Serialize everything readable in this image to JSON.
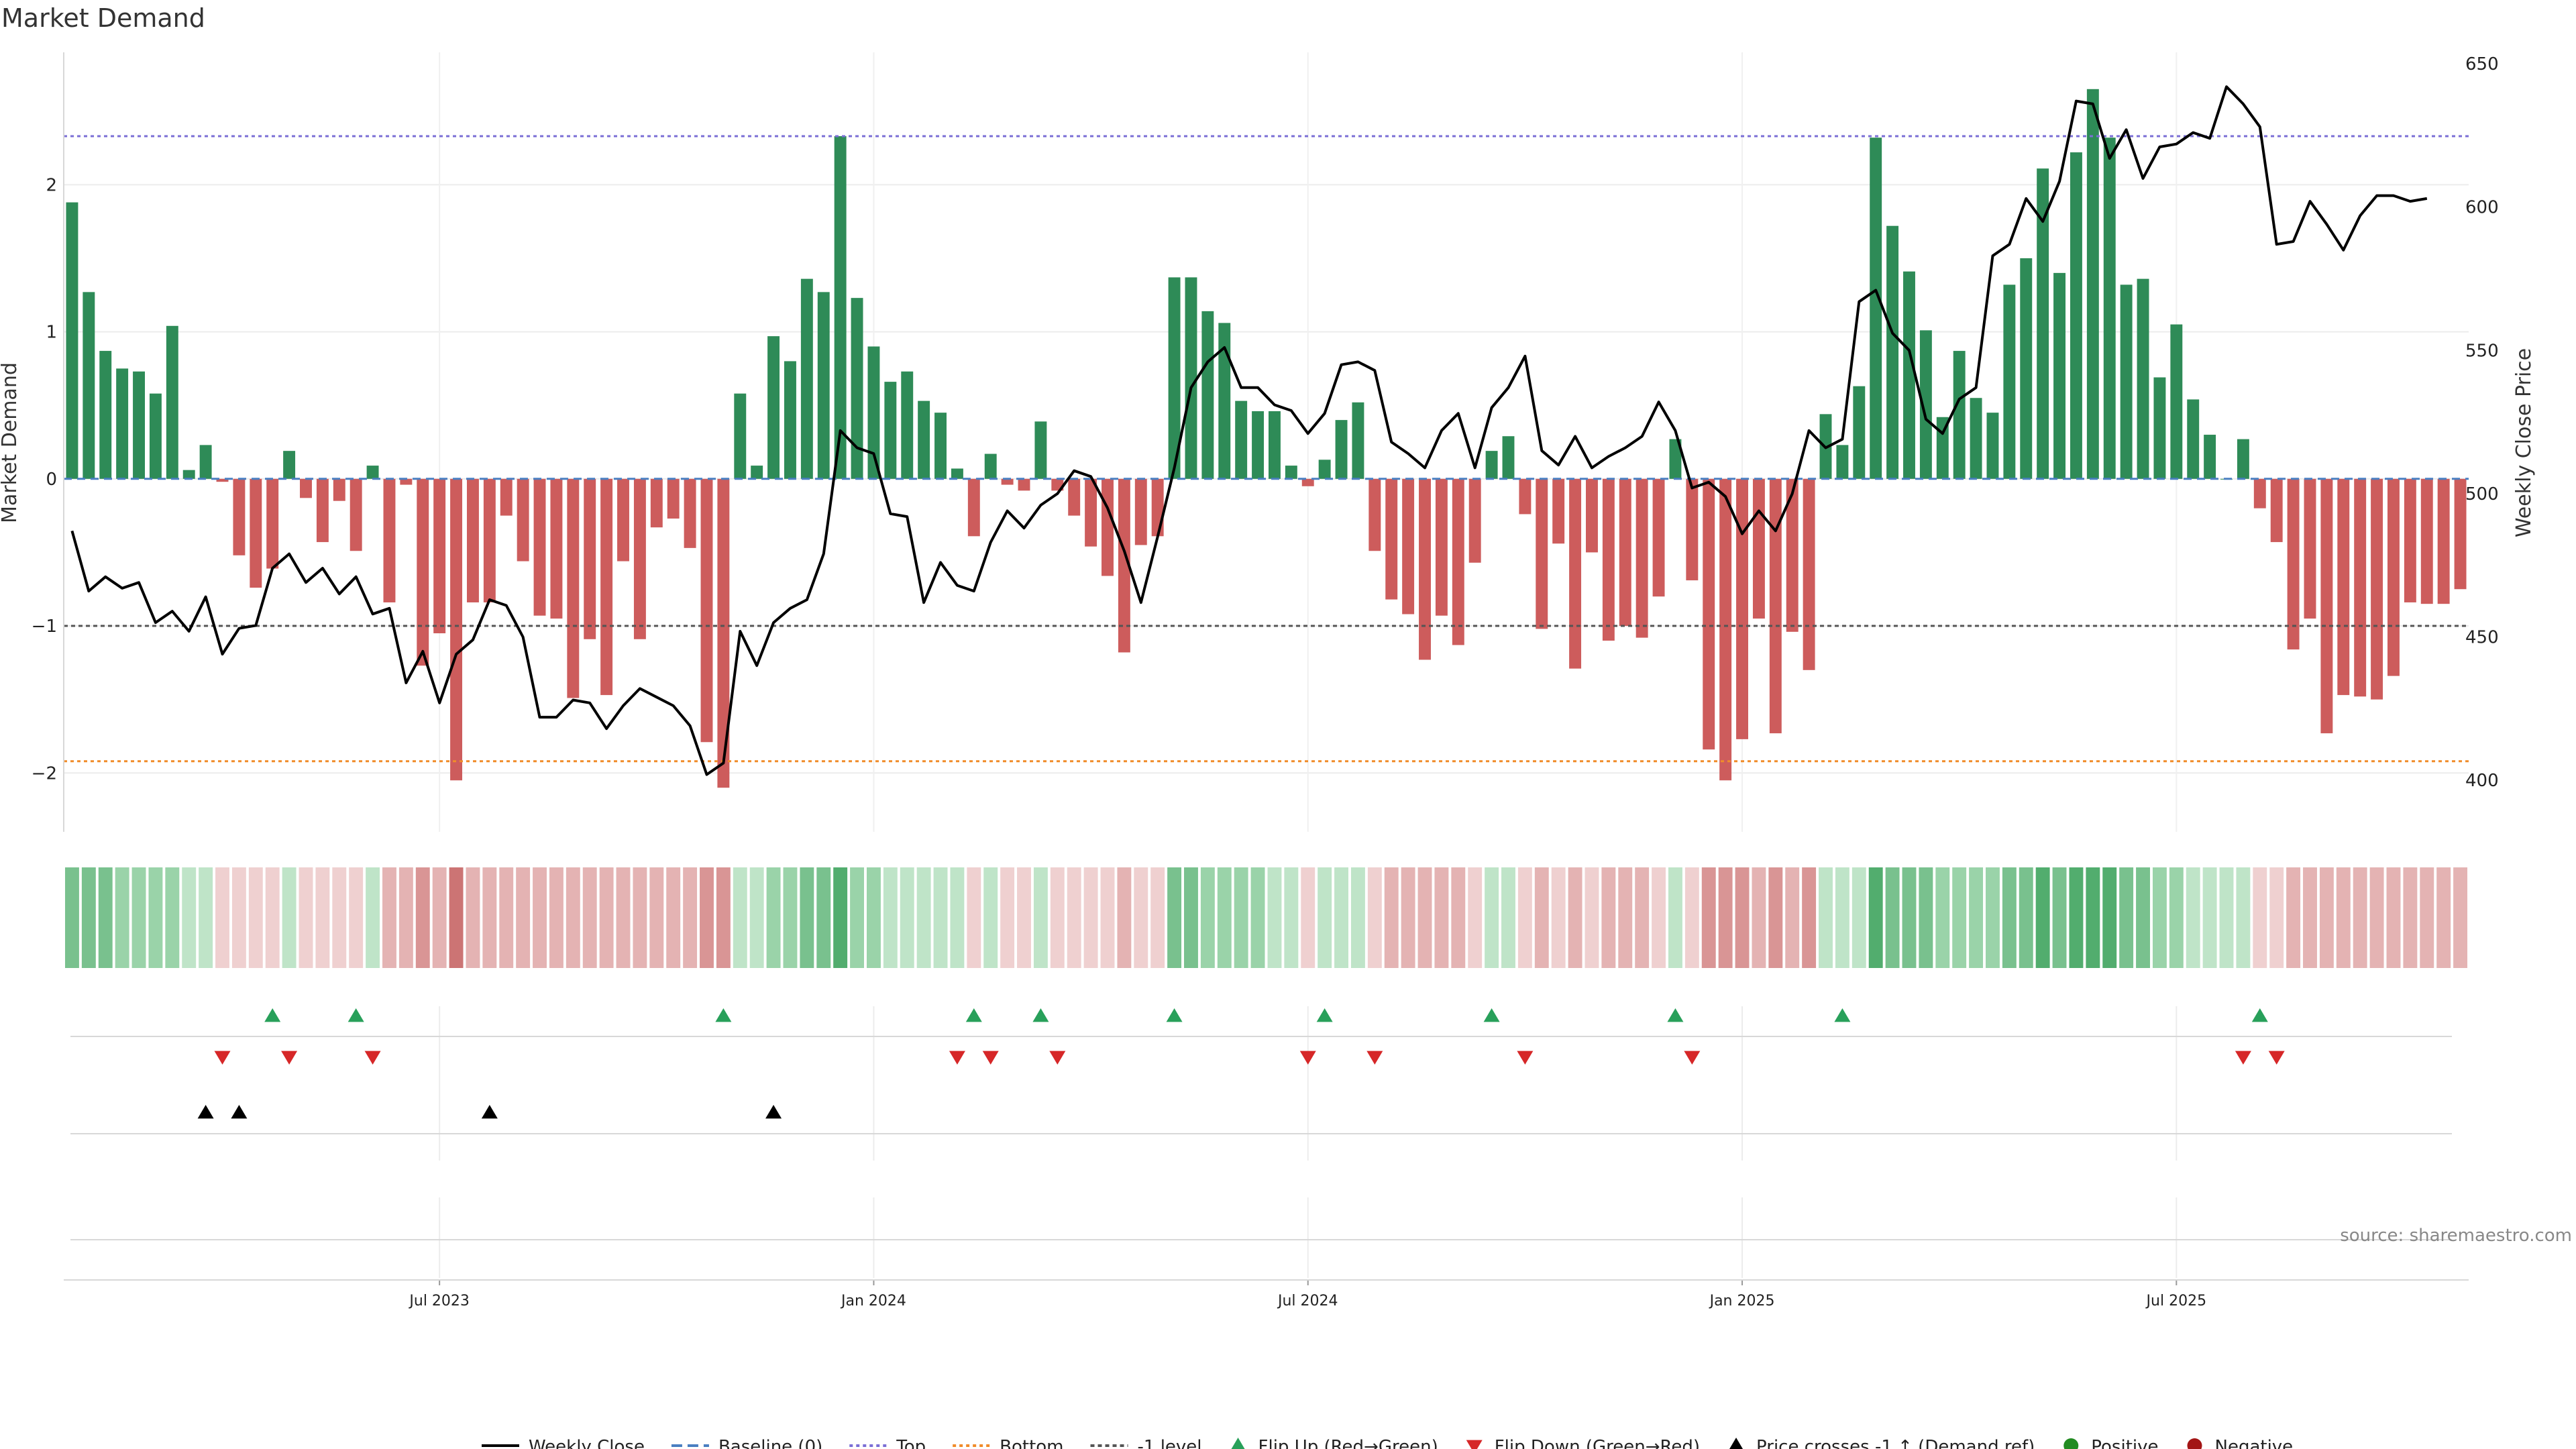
{
  "chart_data": {
    "type": "bar",
    "title": "Market Demand",
    "ylabel_left": "Market Demand",
    "ylabel_right": "Weekly Close Price",
    "left_ylim": [
      -2.4,
      2.9
    ],
    "left_ticks": [
      {
        "v": 2,
        "label": "2"
      },
      {
        "v": 1,
        "label": "1"
      },
      {
        "v": 0,
        "label": "0"
      },
      {
        "v": -1,
        "label": "−1"
      },
      {
        "v": -2,
        "label": "−2"
      }
    ],
    "right_ylim": [
      382,
      654
    ],
    "right_ticks": [
      {
        "v": 650,
        "label": "650"
      },
      {
        "v": 600,
        "label": "600"
      },
      {
        "v": 550,
        "label": "550"
      },
      {
        "v": 500,
        "label": "500"
      },
      {
        "v": 450,
        "label": "450"
      },
      {
        "v": 400,
        "label": "400"
      }
    ],
    "reference_lines": {
      "top": 2.33,
      "bottom": -1.92,
      "minus_one": -1,
      "baseline": 0
    },
    "x_ticks": [
      {
        "i": 22,
        "label": "Jul 2023"
      },
      {
        "i": 48,
        "label": "Jan 2024"
      },
      {
        "i": 74,
        "label": "Jul 2024"
      },
      {
        "i": 100,
        "label": "Jan 2025"
      },
      {
        "i": 126,
        "label": "Jul 2025"
      }
    ],
    "demand": [
      1.88,
      1.27,
      0.87,
      0.75,
      0.73,
      0.58,
      1.04,
      0.06,
      0.23,
      -0.02,
      -0.52,
      -0.74,
      -0.61,
      0.19,
      -0.13,
      -0.43,
      -0.15,
      -0.49,
      0.09,
      -0.84,
      -0.04,
      -1.27,
      -1.05,
      -2.05,
      -0.84,
      -0.84,
      -0.25,
      -0.56,
      -0.93,
      -0.95,
      -1.49,
      -1.09,
      -1.47,
      -0.56,
      -1.09,
      -0.33,
      -0.27,
      -0.47,
      -1.79,
      -2.1,
      0.58,
      0.09,
      0.97,
      0.8,
      1.36,
      1.27,
      2.33,
      1.23,
      0.9,
      0.66,
      0.73,
      0.53,
      0.45,
      0.07,
      -0.39,
      0.17,
      -0.04,
      -0.08,
      0.39,
      -0.08,
      -0.25,
      -0.46,
      -0.66,
      -1.18,
      -0.45,
      -0.39,
      1.37,
      1.37,
      1.14,
      1.06,
      0.53,
      0.46,
      0.46,
      0.09,
      -0.05,
      0.13,
      0.4,
      0.52,
      -0.49,
      -0.82,
      -0.92,
      -1.23,
      -0.93,
      -1.13,
      -0.57,
      0.19,
      0.29,
      -0.24,
      -1.02,
      -0.44,
      -1.29,
      -0.5,
      -1.1,
      -1.0,
      -1.08,
      -0.8,
      0.27,
      -0.69,
      -1.84,
      -2.05,
      -1.77,
      -0.95,
      -1.73,
      -1.04,
      -1.3,
      0.44,
      0.23,
      0.63,
      2.32,
      1.72,
      1.41,
      1.01,
      0.42,
      0.87,
      0.55,
      0.45,
      1.32,
      1.5,
      2.11,
      1.4,
      2.22,
      2.65,
      2.32,
      1.32,
      1.36,
      0.69,
      1.05,
      0.54,
      0.3,
      0.0,
      0.27,
      -0.2,
      -0.43,
      -1.16,
      -0.95,
      -1.73,
      -1.47,
      -1.48,
      -1.5,
      -1.34,
      -0.84,
      -0.85,
      -0.85,
      -0.75
    ],
    "price": [
      487,
      466,
      471,
      467,
      469,
      455,
      459,
      452,
      464,
      444,
      453,
      454,
      474,
      479,
      469,
      474,
      465,
      471,
      458,
      460,
      434,
      445,
      427,
      444,
      449,
      463,
      461,
      450,
      422,
      422,
      428,
      427,
      418,
      426,
      432,
      429,
      426,
      419,
      402,
      406,
      452,
      440,
      455,
      460,
      463,
      479,
      522,
      516,
      514,
      493,
      492,
      462,
      476,
      468,
      466,
      483,
      494,
      488,
      496,
      500,
      508,
      506,
      495,
      480,
      462,
      485,
      509,
      537,
      546,
      551,
      537,
      537,
      531,
      529,
      521,
      528,
      545,
      546,
      543,
      518,
      514,
      509,
      522,
      528,
      509,
      530,
      537,
      548,
      515,
      510,
      520,
      509,
      513,
      516,
      520,
      532,
      522,
      502,
      504,
      499,
      486,
      494,
      487,
      500,
      522,
      516,
      519,
      567,
      571,
      556,
      550,
      526,
      521,
      533,
      537,
      583,
      587,
      603,
      595,
      609,
      637,
      636,
      617,
      627,
      610,
      621,
      622,
      626,
      624,
      642,
      636,
      628,
      587,
      588,
      602,
      594,
      585,
      597,
      604,
      604,
      602,
      603
    ],
    "heat_levels": [
      3,
      3,
      3,
      2,
      2,
      2,
      2,
      1,
      1,
      1,
      1,
      1,
      1,
      1,
      1,
      1,
      1,
      1,
      1,
      2,
      2,
      3,
      2,
      4,
      2,
      2,
      2,
      2,
      2,
      2,
      2,
      2,
      2,
      2,
      2,
      2,
      2,
      2,
      3,
      3,
      1,
      1,
      2,
      2,
      3,
      3,
      4,
      2,
      2,
      1,
      1,
      1,
      1,
      1,
      1,
      1,
      1,
      1,
      1,
      1,
      1,
      1,
      1,
      2,
      1,
      1,
      3,
      3,
      2,
      2,
      2,
      2,
      1,
      1,
      1,
      1,
      1,
      1,
      1,
      2,
      2,
      2,
      2,
      2,
      1,
      1,
      1,
      1,
      2,
      1,
      2,
      1,
      2,
      2,
      2,
      1,
      1,
      1,
      3,
      3,
      3,
      2,
      3,
      2,
      3,
      1,
      1,
      1,
      4,
      3,
      3,
      3,
      2,
      2,
      2,
      2,
      3,
      3,
      4,
      3,
      4,
      4,
      4,
      3,
      3,
      2,
      2,
      1,
      1,
      1,
      1,
      1,
      1,
      2,
      2,
      2,
      2,
      2,
      2,
      2,
      2,
      2,
      2,
      2
    ],
    "flip_up": [
      12,
      17,
      39,
      54,
      58,
      66,
      75,
      85,
      96,
      106,
      131
    ],
    "flip_down": [
      9,
      13,
      18,
      53,
      55,
      59,
      74,
      78,
      87,
      97,
      130,
      132
    ],
    "price_cross": [
      8,
      10,
      25,
      42
    ],
    "source": "source: sharemaestro.com",
    "legend": [
      {
        "key": "weekly-close",
        "label": "Weekly Close"
      },
      {
        "key": "baseline",
        "label": "Baseline (0)"
      },
      {
        "key": "top",
        "label": "Top"
      },
      {
        "key": "bottom",
        "label": "Bottom"
      },
      {
        "key": "minus-one",
        "label": "-1 level"
      },
      {
        "key": "flip-up",
        "label": "Flip Up (Red→Green)"
      },
      {
        "key": "flip-down",
        "label": "Flip Down (Green→Red)"
      },
      {
        "key": "price-cross",
        "label": "Price crosses -1 ↑ (Demand ref)"
      },
      {
        "key": "positive",
        "label": "Positive"
      },
      {
        "key": "negative",
        "label": "Negative"
      }
    ],
    "colors": {
      "positive_bar": "#2e8b57",
      "negative_bar": "#cd5c5c",
      "price_line": "#000000",
      "baseline": "#4a7fc1",
      "top": "#7b6fd6",
      "bottom": "#f08c2a",
      "minus_one": "#555555",
      "flip_up": "#28a05a",
      "flip_down": "#d62728",
      "price_cross": "#000000",
      "legend_positive": "#228b22",
      "legend_negative": "#a31515"
    }
  }
}
